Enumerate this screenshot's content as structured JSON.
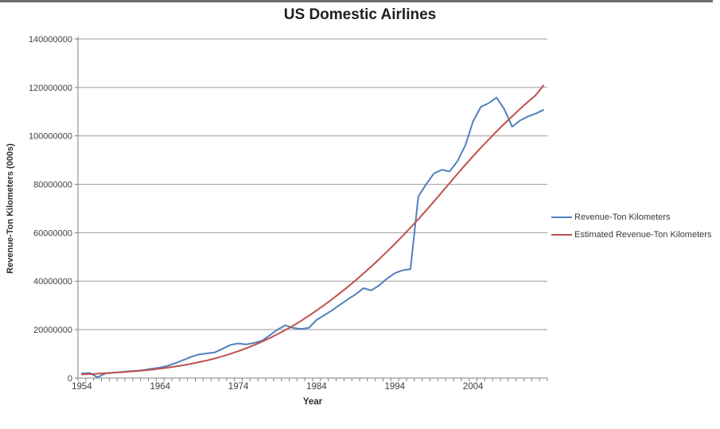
{
  "window": {
    "top_bar_color": "#6e6e6e",
    "top_bar_width": 896,
    "background": "#ffffff"
  },
  "chart_data": {
    "type": "line",
    "title": "US Domestic Airlines",
    "xlabel": "Year",
    "ylabel": "Revenue-Ton Kilometers (000s)",
    "grid": "horizontal",
    "legend_position": "right",
    "x_start_year": 1954,
    "x_end_year": 2013,
    "ylim": [
      0,
      140000000
    ],
    "yticks": [
      0,
      20000000,
      40000000,
      60000000,
      80000000,
      100000000,
      120000000,
      140000000
    ],
    "xticks": [
      1954,
      1964,
      1974,
      1984,
      1994,
      2004
    ],
    "axis_color": "#7f7f7f",
    "gridline_color": "#9b9b9b",
    "tick_label_color": "#404040",
    "series": [
      {
        "name": "Revenue-Ton Kilometers",
        "color": "#4F81BD",
        "values": [
          1900000,
          2100000,
          300000,
          1900000,
          2200000,
          2500000,
          2800000,
          3000000,
          3400000,
          3900000,
          4300000,
          5100000,
          6200000,
          7500000,
          8800000,
          9800000,
          10200000,
          10600000,
          12100000,
          13700000,
          14300000,
          13900000,
          14500000,
          15400000,
          17600000,
          20000000,
          21800000,
          20700000,
          20300000,
          20700000,
          24000000,
          26000000,
          28000000,
          30300000,
          32500000,
          34600000,
          37100000,
          36200000,
          38300000,
          41000000,
          43300000,
          44500000,
          45000000,
          75000000,
          80000000,
          84500000,
          86000000,
          85300000,
          89500000,
          96000000,
          106000000,
          112000000,
          113500000,
          115800000,
          111000000,
          103800000,
          106300000,
          108000000,
          109200000,
          110700000
        ]
      },
      {
        "name": "Estimated Revenue-Ton Kilometers",
        "color": "#C0504D",
        "values": [
          1500000,
          1650000,
          1800000,
          2000000,
          2200000,
          2400000,
          2650000,
          2900000,
          3200000,
          3500000,
          3900000,
          4300000,
          4800000,
          5300000,
          5900000,
          6600000,
          7300000,
          8100000,
          9000000,
          10000000,
          11100000,
          12300000,
          13600000,
          15000000,
          16500000,
          18100000,
          19800000,
          21600000,
          23600000,
          25700000,
          27900000,
          30200000,
          32600000,
          35100000,
          37700000,
          40400000,
          43200000,
          46100000,
          49100000,
          52200000,
          55400000,
          58700000,
          62100000,
          65600000,
          69200000,
          72900000,
          76700000,
          80500000,
          84300000,
          88000000,
          91600000,
          95100000,
          98500000,
          101800000,
          105000000,
          108100000,
          111100000,
          114000000,
          116800000,
          120800000
        ]
      }
    ]
  }
}
